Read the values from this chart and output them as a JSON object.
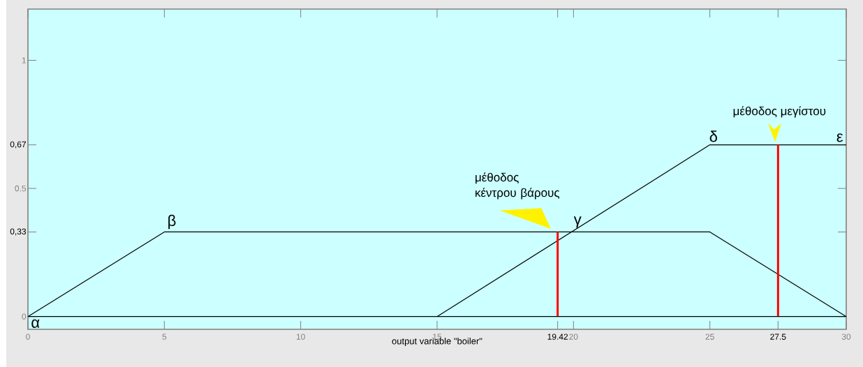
{
  "chart_data": {
    "type": "line",
    "xlabel": "output variable \"boiler\"",
    "xlim": [
      0,
      30
    ],
    "ylim": [
      -0.05,
      1.2
    ],
    "xticks": [
      0,
      5,
      10,
      15,
      {
        "value": 19.42,
        "label": "19.42"
      },
      20,
      25,
      {
        "value": 27.5,
        "label": "27.5"
      },
      30
    ],
    "yticks": [
      0,
      {
        "value": 0.33,
        "label": "0,33"
      },
      0.5,
      {
        "value": 0.67,
        "label": "0,67"
      },
      1
    ],
    "series": [
      {
        "color": "#000000",
        "x": [
          0,
          5,
          25,
          30
        ],
        "values": [
          0,
          0.33,
          0.33,
          0
        ]
      },
      {
        "color": "#000000",
        "x": [
          15,
          25,
          30
        ],
        "values": [
          0,
          0.67,
          0.67
        ]
      },
      {
        "color": "#ff0000",
        "x": [
          19.42,
          19.42
        ],
        "values": [
          0,
          0.33
        ]
      },
      {
        "color": "#ff0000",
        "x": [
          27.5,
          27.5
        ],
        "values": [
          0,
          0.67
        ]
      }
    ],
    "ref_lines": [
      {
        "axis": "y",
        "value": 0,
        "color": "#000000"
      }
    ],
    "annotations": [
      {
        "text": "α",
        "x": 0,
        "y": 0
      },
      {
        "text": "β",
        "x": 5,
        "y": 0.33
      },
      {
        "text": "γ",
        "x": 20,
        "y": 0.33
      },
      {
        "text": "δ",
        "x": 25,
        "y": 0.67
      },
      {
        "text": "ε",
        "x": 30,
        "y": 0.67
      },
      {
        "text": "μέθοδος κέντρου βάρους",
        "x": 19.42,
        "y": 0.33
      },
      {
        "text": "μέθοδος μεγίστου",
        "x": 27.5,
        "y": 0.67
      }
    ]
  }
}
